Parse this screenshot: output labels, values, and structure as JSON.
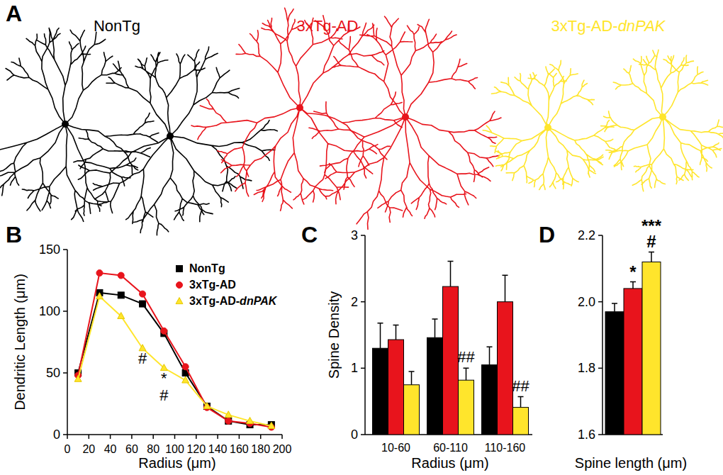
{
  "panel_labels": [
    "A",
    "B",
    "C",
    "D"
  ],
  "panel_a": {
    "groups": [
      {
        "name": "NonTg",
        "color": "#000000"
      },
      {
        "name": "3xTg-AD",
        "color": "#e8141c"
      },
      {
        "name": "3xTg-AD-dnPAK",
        "color": "#ffe52c"
      }
    ]
  },
  "chart_data": [
    {
      "type": "line",
      "x": [
        10,
        30,
        50,
        70,
        90,
        110,
        130,
        150,
        170,
        190
      ],
      "series": [
        {
          "name": "NonTg",
          "color": "#000000",
          "marker": "square",
          "values": [
            50,
            115,
            113,
            106,
            82,
            50,
            23,
            11,
            8,
            8
          ]
        },
        {
          "name": "3xTg-AD",
          "color": "#e8141c",
          "marker": "circle",
          "values": [
            48,
            131,
            129,
            114,
            84,
            55,
            22,
            11,
            9,
            6
          ]
        },
        {
          "name": "3xTg-AD-dnPAK",
          "color": "#ffe52c",
          "marker": "triangle",
          "values": [
            45,
            112,
            96,
            70,
            54,
            44,
            23,
            16,
            11,
            7
          ]
        }
      ],
      "xlim": [
        0,
        200
      ],
      "xticks": [
        0,
        20,
        40,
        60,
        80,
        100,
        120,
        140,
        160,
        180,
        200
      ],
      "ylim": [
        0,
        150
      ],
      "yticks": [
        0,
        50,
        100,
        150
      ],
      "x_label": "Radius (μm)",
      "y_label": "Dendritic Length (μm)",
      "legend": "upper right",
      "annotations": [
        {
          "x": 70,
          "text": "#"
        },
        {
          "x": 90,
          "text": "*"
        },
        {
          "x": 90,
          "text": "#"
        }
      ]
    },
    {
      "type": "bar",
      "categories": [
        "10-60",
        "60-110",
        "110-160"
      ],
      "series": [
        {
          "name": "NonTg",
          "color": "#000000",
          "values": [
            1.3,
            1.46,
            1.05
          ],
          "errors": [
            0.38,
            0.28,
            0.27
          ]
        },
        {
          "name": "3xTg-AD",
          "color": "#e8141c",
          "values": [
            1.43,
            2.23,
            2.0
          ],
          "errors": [
            0.22,
            0.38,
            0.4
          ]
        },
        {
          "name": "3xTg-AD-dnPAK",
          "color": "#ffe52c",
          "values": [
            0.75,
            0.82,
            0.41
          ],
          "errors": [
            0.2,
            0.18,
            0.16
          ]
        }
      ],
      "ylim": [
        0,
        3
      ],
      "yticks": [
        0,
        1,
        2,
        3
      ],
      "x_label": "Radius (μm)",
      "y_label": "Spine Density",
      "annotations": [
        {
          "category": "60-110",
          "series": "3xTg-AD-dnPAK",
          "text": "##"
        },
        {
          "category": "110-160",
          "series": "3xTg-AD-dnPAK",
          "text": "##"
        }
      ]
    },
    {
      "type": "bar",
      "categories": [
        null,
        null,
        null
      ],
      "values": [
        1.97,
        2.04,
        2.12
      ],
      "errors": [
        0.025,
        0.02,
        0.03
      ],
      "colors": [
        "#000000",
        "#e8141c",
        "#ffe52c"
      ],
      "ylim": [
        1.6,
        2.2
      ],
      "yticks": [
        1.6,
        1.8,
        {
          "value": 2,
          "label": "2.0"
        },
        2.2
      ],
      "x_label": "Spine length (μm)",
      "annotations": [
        {
          "index": 1,
          "text": "*"
        },
        {
          "index": 2,
          "text": "***"
        },
        {
          "index": 2,
          "text": "#"
        }
      ]
    }
  ]
}
